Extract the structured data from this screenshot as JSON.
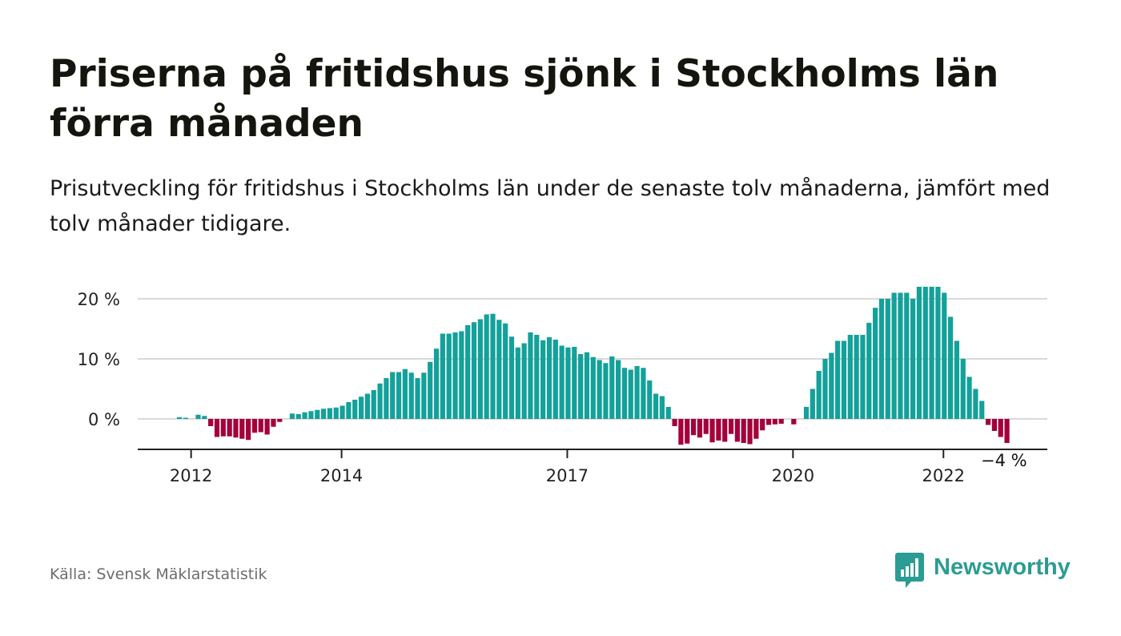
{
  "title": "Priserna på fritidshus sjönk i Stockholms län förra månaden",
  "subtitle": "Prisutveckling för fritidshus i Stockholms län under de senaste tolv månaderna, jämfört med tolv månader tidigare.",
  "source": "Källa: Svensk Mäklarstatistik",
  "brand": "Newsworthy",
  "colors": {
    "positive": "#13a19a",
    "negative": "#a3003c",
    "brand": "#2b9c93",
    "grid": "#d9d9d9"
  },
  "chart_data": {
    "type": "bar",
    "ylabel": "",
    "ylim": [
      -5,
      22
    ],
    "yticks": [
      {
        "v": 0,
        "label": "0 %"
      },
      {
        "v": 10,
        "label": "10 %"
      },
      {
        "v": 20,
        "label": "20 %"
      }
    ],
    "xticks": [
      {
        "year": 2012,
        "label": "2012"
      },
      {
        "year": 2014,
        "label": "2014"
      },
      {
        "year": 2017,
        "label": "2017"
      },
      {
        "year": 2020,
        "label": "2020"
      },
      {
        "year": 2022,
        "label": "2022"
      }
    ],
    "start": "2011-11",
    "annotation": "−4 %",
    "values": [
      0.3,
      0.2,
      0.0,
      0.7,
      0.5,
      -1.2,
      -3.0,
      -2.9,
      -2.9,
      -3.1,
      -3.3,
      -3.5,
      -2.3,
      -2.2,
      -2.6,
      -1.3,
      -0.5,
      0.0,
      0.9,
      0.8,
      1.1,
      1.3,
      1.5,
      1.7,
      1.8,
      1.9,
      2.2,
      2.8,
      3.2,
      3.7,
      4.2,
      4.8,
      5.9,
      6.8,
      7.8,
      7.8,
      8.3,
      7.7,
      6.8,
      7.7,
      9.5,
      11.7,
      14.2,
      14.2,
      14.4,
      14.6,
      15.6,
      16.1,
      16.6,
      17.4,
      17.5,
      16.5,
      15.9,
      13.7,
      11.9,
      12.6,
      14.4,
      14.0,
      13.1,
      13.6,
      13.2,
      12.2,
      11.9,
      12.0,
      10.8,
      11.1,
      10.3,
      9.8,
      9.3,
      10.4,
      9.8,
      8.5,
      8.2,
      8.8,
      8.5,
      6.4,
      4.2,
      3.8,
      2.0,
      -1.2,
      -4.3,
      -4.1,
      -2.7,
      -3.1,
      -2.5,
      -3.9,
      -3.6,
      -3.8,
      -2.5,
      -3.8,
      -4.0,
      -4.2,
      -3.3,
      -1.9,
      -1.0,
      -0.9,
      -0.8,
      0.0,
      -0.9,
      0.0,
      2.0,
      5.0,
      8.0,
      10.0,
      11.0,
      13.0,
      13.0,
      14.0,
      14.0,
      14.0,
      16.0,
      18.5,
      20.0,
      20.0,
      21.0,
      21.0,
      21.0,
      20.0,
      22.0,
      22.0,
      22.0,
      22.0,
      21.0,
      17.0,
      13.0,
      10.0,
      7.0,
      5.0,
      3.0,
      -1.0,
      -2.0,
      -3.0,
      -4.0
    ]
  }
}
